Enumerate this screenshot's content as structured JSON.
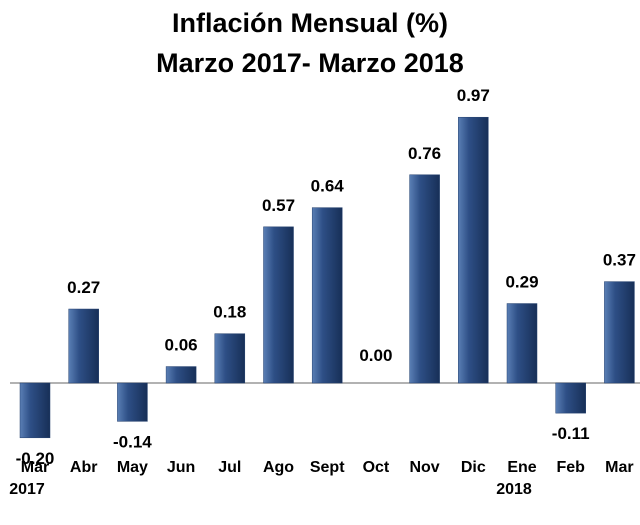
{
  "chart_data": {
    "type": "bar",
    "title": [
      "Inflación Mensual (%)",
      "Marzo 2017- Marzo 2018"
    ],
    "categories": [
      [
        "Mar",
        "2017"
      ],
      [
        "Abr"
      ],
      [
        "May"
      ],
      [
        "Jun"
      ],
      [
        "Jul"
      ],
      [
        "Ago"
      ],
      [
        "Sept"
      ],
      [
        "Oct"
      ],
      [
        "Nov"
      ],
      [
        "Dic"
      ],
      [
        "Ene",
        "2018"
      ],
      [
        "Feb"
      ],
      [
        "Mar"
      ]
    ],
    "values": [
      -0.2,
      0.27,
      -0.14,
      0.06,
      0.18,
      0.57,
      0.64,
      0,
      0.76,
      0.97,
      0.29,
      -0.11,
      0.37
    ],
    "value_labels": [
      "-0.20",
      "0.27",
      "-0.14",
      "0.06",
      "0.18",
      "0.57",
      "0.64",
      "0.00",
      "0.76",
      "0.97",
      "0.29",
      "-0.11",
      "0.37"
    ],
    "color": "#24406e"
  }
}
